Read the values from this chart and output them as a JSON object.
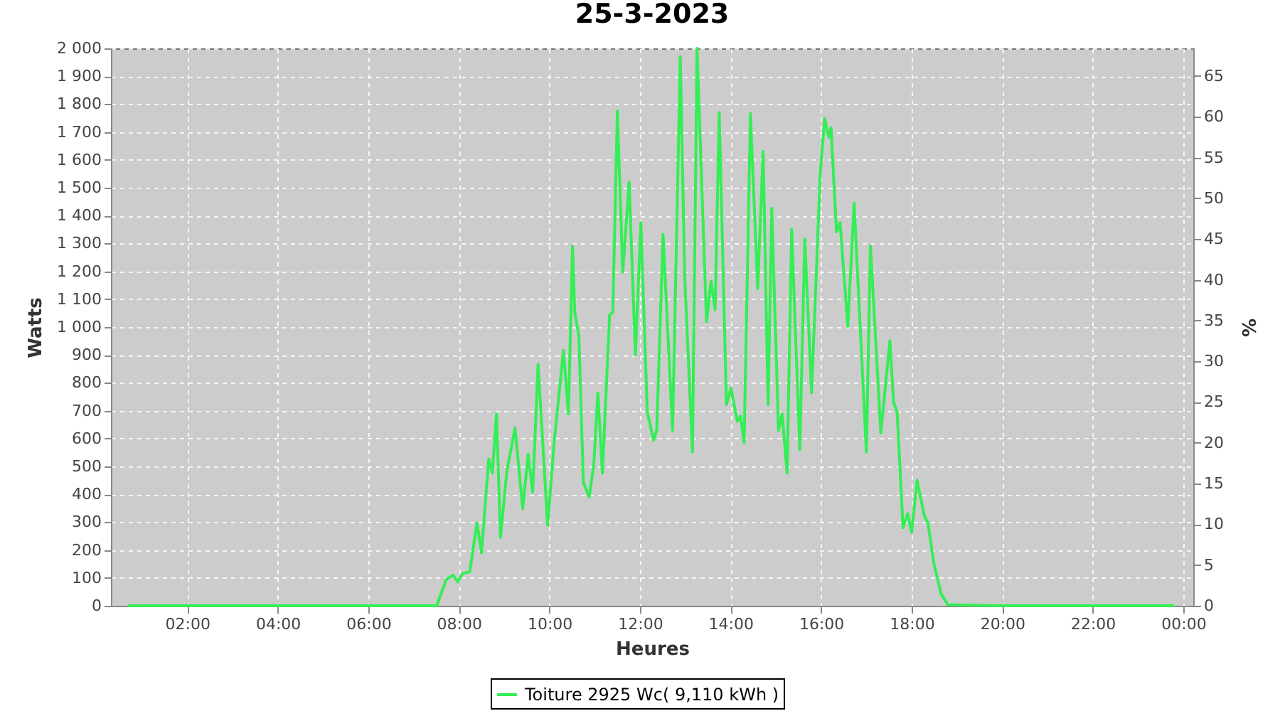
{
  "chart_data": {
    "type": "line",
    "title": "25-3-2023",
    "xlabel": "Heures",
    "ylabel": "Watts",
    "y2label": "%",
    "x": [
      0.7,
      2,
      4,
      6,
      7.0,
      7.51,
      7.72,
      7.87,
      7.98,
      8.08,
      8.24,
      8.4,
      8.5,
      8.66,
      8.74,
      8.83,
      8.92,
      9.06,
      9.24,
      9.41,
      9.53,
      9.63,
      9.75,
      9.96,
      10.1,
      10.31,
      10.42,
      10.51,
      10.56,
      10.65,
      10.75,
      10.88,
      10.98,
      11.07,
      11.17,
      11.33,
      11.4,
      11.5,
      11.62,
      11.76,
      11.9,
      12.02,
      12.16,
      12.3,
      12.37,
      12.51,
      12.72,
      12.89,
      12.99,
      13.16,
      13.26,
      13.47,
      13.57,
      13.66,
      13.75,
      13.91,
      14.01,
      14.15,
      14.22,
      14.3,
      14.44,
      14.6,
      14.72,
      14.83,
      14.91,
      15.06,
      15.14,
      15.25,
      15.35,
      15.53,
      15.64,
      15.79,
      15.98,
      16.08,
      16.17,
      16.22,
      16.34,
      16.42,
      16.59,
      16.73,
      17.0,
      17.09,
      17.32,
      17.52,
      17.6,
      17.68,
      17.81,
      17.91,
      18.0,
      18.12,
      18.28,
      18.36,
      18.49,
      18.65,
      18.8,
      20,
      22,
      23.8
    ],
    "series": [
      {
        "name": "Toiture 2925 Wc( 9,110 kWh )",
        "color": "#33ee55",
        "values": [
          0,
          0,
          0,
          0,
          0,
          0,
          94,
          110,
          85,
          115,
          122,
          297,
          190,
          527,
          476,
          688,
          246,
          484,
          637,
          348,
          544,
          408,
          866,
          289,
          578,
          917,
          688,
          1291,
          1053,
          968,
          442,
          391,
          509,
          764,
          476,
          1044,
          1053,
          1775,
          1197,
          1520,
          900,
          1375,
          696,
          594,
          629,
          1333,
          629,
          1970,
          1172,
          552,
          2000,
          1019,
          1164,
          1062,
          1770,
          722,
          781,
          662,
          680,
          586,
          1766,
          1138,
          1630,
          722,
          1426,
          629,
          688,
          476,
          1350,
          560,
          1316,
          764,
          1546,
          1749,
          1681,
          1715,
          1342,
          1375,
          1002,
          1444,
          552,
          1291,
          620,
          951,
          730,
          696,
          280,
          331,
          263,
          450,
          323,
          297,
          153,
          43,
          4,
          0,
          0,
          0
        ]
      }
    ],
    "xlim": [
      0.315,
      24.22
    ],
    "xticks": [
      {
        "value": 2,
        "label": "02:00"
      },
      {
        "value": 4,
        "label": "04:00"
      },
      {
        "value": 6,
        "label": "06:00"
      },
      {
        "value": 8,
        "label": "08:00"
      },
      {
        "value": 10,
        "label": "10:00"
      },
      {
        "value": 12,
        "label": "12:00"
      },
      {
        "value": 14,
        "label": "14:00"
      },
      {
        "value": 16,
        "label": "16:00"
      },
      {
        "value": 18,
        "label": "18:00"
      },
      {
        "value": 20,
        "label": "20:00"
      },
      {
        "value": 22,
        "label": "22:00"
      },
      {
        "value": 24,
        "label": "00:00"
      }
    ],
    "ylim": [
      0,
      2000
    ],
    "yticks": [
      0,
      100,
      200,
      300,
      400,
      500,
      600,
      700,
      800,
      900,
      {
        "value": 1000,
        "label": "1 000"
      },
      {
        "value": 1100,
        "label": "1 100"
      },
      {
        "value": 1200,
        "label": "1 200"
      },
      {
        "value": 1300,
        "label": "1 300"
      },
      {
        "value": 1400,
        "label": "1 400"
      },
      {
        "value": 1500,
        "label": "1 500"
      },
      {
        "value": 1600,
        "label": "1 600"
      },
      {
        "value": 1700,
        "label": "1 700"
      },
      {
        "value": 1800,
        "label": "1 800"
      },
      {
        "value": 1900,
        "label": "1 900"
      },
      {
        "value": 2000,
        "label": "2 000"
      }
    ],
    "y2lim": [
      0,
      68.4
    ],
    "y2ticks": [
      0,
      5,
      10,
      15,
      20,
      25,
      30,
      35,
      40,
      45,
      50,
      55,
      60,
      65
    ],
    "grid": true,
    "legend": "bottom",
    "marker": "none",
    "line_style": "solid"
  }
}
